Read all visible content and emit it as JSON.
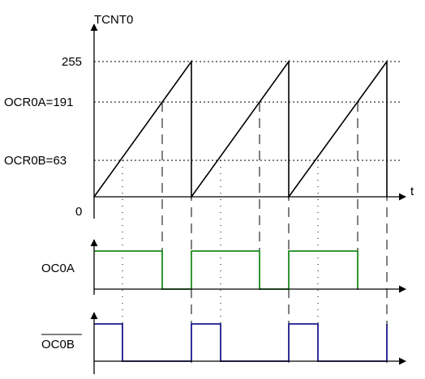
{
  "labels": {
    "y_axis": "TCNT0",
    "x_axis": "t",
    "origin": "0",
    "top": "255",
    "ocr0a": "OCR0A=191",
    "ocr0b": "OCR0B=63",
    "oc0a": "OC0A",
    "oc0b": "OC0B"
  },
  "colors": {
    "counter": "#000000",
    "oc0a": "#1d8a1d",
    "oc0b": "#1a1a8c"
  },
  "counter": {
    "max": 255,
    "ocr0a": 191,
    "ocr0b": 63,
    "periods": 3
  }
}
